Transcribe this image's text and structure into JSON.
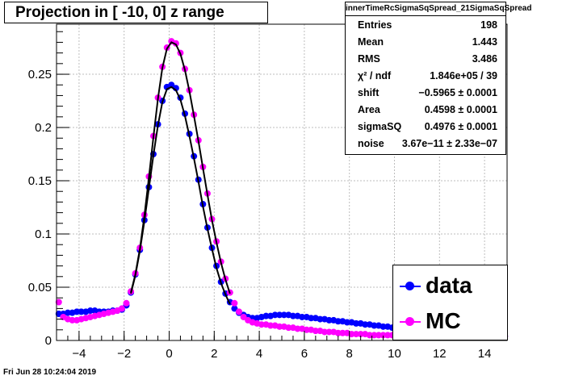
{
  "title": "Projection in [ -10,   0] z range",
  "timestamp": "Fri Jun 28 10:24:04 2019",
  "stats": {
    "name": "innerTimeRcSigmaSqSpread_21SigmaSqSpread",
    "rows": [
      {
        "label": "Entries",
        "value": "198"
      },
      {
        "label": "Mean",
        "value": "1.443"
      },
      {
        "label": "RMS",
        "value": "3.486"
      },
      {
        "label": "χ² / ndf",
        "value": "1.846e+05 / 39"
      },
      {
        "label": "shift",
        "value": "−0.5965 ± 0.0001"
      },
      {
        "label": "Area",
        "value": "0.4598 ± 0.0001"
      },
      {
        "label": "sigmaSQ",
        "value": "0.4976 ± 0.0001"
      },
      {
        "label": "noise",
        "value": "3.67e−11 ± 2.33e−07"
      }
    ]
  },
  "legend": [
    {
      "label": "data",
      "color": "#0000ff"
    },
    {
      "label": "MC",
      "color": "#ff00ff"
    }
  ],
  "chart_data": {
    "type": "scatter",
    "title": "Projection in [ -10,   0] z range",
    "xlim": [
      -5,
      15
    ],
    "ylim": [
      0,
      0.297
    ],
    "xticks": [
      -4,
      -2,
      0,
      2,
      4,
      6,
      8,
      10,
      12,
      14
    ],
    "xtick_labels": [
      "−4",
      "−2",
      "0",
      "2",
      "4",
      "6",
      "8",
      "10",
      "12",
      "14"
    ],
    "yticks": [
      0.05,
      0.1,
      0.15,
      0.2,
      0.25
    ],
    "ytick_labels": [
      "0.05",
      "0.1",
      "0.15",
      "0.2",
      "0.25"
    ],
    "y_origin_label": "0",
    "grid": true,
    "series": [
      {
        "name": "data",
        "color": "#0000ff",
        "x": [
          -4.9,
          -4.7,
          -4.5,
          -4.3,
          -4.1,
          -3.9,
          -3.7,
          -3.5,
          -3.3,
          -3.1,
          -2.9,
          -2.7,
          -2.5,
          -2.3,
          -2.1,
          -1.9,
          -1.7,
          -1.5,
          -1.3,
          -1.1,
          -0.9,
          -0.7,
          -0.5,
          -0.3,
          -0.1,
          0.1,
          0.3,
          0.5,
          0.7,
          0.9,
          1.1,
          1.3,
          1.5,
          1.7,
          1.9,
          2.1,
          2.3,
          2.5,
          2.7,
          2.9,
          3.1,
          3.3,
          3.5,
          3.7,
          3.9,
          4.1,
          4.3,
          4.5,
          4.7,
          4.9,
          5.1,
          5.3,
          5.5,
          5.7,
          5.9,
          6.1,
          6.3,
          6.5,
          6.7,
          6.9,
          7.1,
          7.3,
          7.5,
          7.7,
          7.9,
          8.1,
          8.3,
          8.5,
          8.7,
          8.9,
          9.1,
          9.3,
          9.5,
          9.7,
          9.9,
          10.1,
          10.3,
          10.5,
          10.7,
          10.9,
          11.1,
          11.3,
          11.5,
          11.7,
          11.9,
          12.1,
          12.3,
          12.5,
          12.7,
          12.9,
          13.1,
          13.3,
          13.5,
          13.7,
          13.9,
          14.1,
          14.3,
          14.5,
          14.7,
          14.9
        ],
        "y": [
          0.025,
          0.025,
          0.026,
          0.026,
          0.027,
          0.027,
          0.027,
          0.028,
          0.028,
          0.027,
          0.027,
          0.027,
          0.028,
          0.028,
          0.029,
          0.033,
          0.045,
          0.062,
          0.085,
          0.113,
          0.144,
          0.175,
          0.203,
          0.225,
          0.238,
          0.24,
          0.237,
          0.228,
          0.213,
          0.194,
          0.173,
          0.151,
          0.128,
          0.106,
          0.087,
          0.07,
          0.055,
          0.044,
          0.036,
          0.03,
          0.026,
          0.024,
          0.022,
          0.021,
          0.021,
          0.022,
          0.023,
          0.023,
          0.024,
          0.024,
          0.024,
          0.024,
          0.023,
          0.023,
          0.022,
          0.022,
          0.021,
          0.021,
          0.02,
          0.02,
          0.019,
          0.019,
          0.018,
          0.018,
          0.017,
          0.017,
          0.016,
          0.016,
          0.015,
          0.015,
          0.014,
          0.014,
          0.013,
          0.013,
          0.012,
          0.012,
          0.011,
          0.011,
          0.01,
          0.01,
          0.009,
          0.009,
          0.009,
          0.008,
          0.008,
          0.008,
          0.007,
          0.007,
          0.007,
          0.006,
          0.006,
          0.006,
          0.005,
          0.005,
          0.005,
          0.005,
          0.004,
          0.004,
          0.004,
          0.004
        ]
      },
      {
        "name": "MC",
        "color": "#ff00ff",
        "x": [
          -4.9,
          -4.7,
          -4.5,
          -4.3,
          -4.1,
          -3.9,
          -3.7,
          -3.5,
          -3.3,
          -3.1,
          -2.9,
          -2.7,
          -2.5,
          -2.3,
          -2.1,
          -1.9,
          -1.7,
          -1.5,
          -1.3,
          -1.1,
          -0.9,
          -0.7,
          -0.5,
          -0.3,
          -0.1,
          0.1,
          0.3,
          0.5,
          0.7,
          0.9,
          1.1,
          1.3,
          1.5,
          1.7,
          1.9,
          2.1,
          2.3,
          2.5,
          2.7,
          2.9,
          3.1,
          3.3,
          3.5,
          3.7,
          3.9,
          4.1,
          4.3,
          4.5,
          4.7,
          4.9,
          5.1,
          5.3,
          5.5,
          5.7,
          5.9,
          6.1,
          6.3,
          6.5,
          6.7,
          6.9,
          7.1,
          7.3,
          7.5,
          7.7,
          7.9,
          8.1,
          8.3,
          8.5,
          8.7,
          8.9,
          9.1,
          9.3,
          9.5,
          9.7,
          9.9,
          10.1,
          10.3,
          10.5,
          10.7,
          10.9,
          11.1,
          11.3,
          11.5,
          11.7,
          11.9,
          12.1,
          12.3,
          12.5,
          12.7,
          12.9,
          13.1,
          13.3,
          13.5,
          13.7,
          13.9,
          14.1,
          14.3,
          14.5,
          14.7,
          14.9
        ],
        "y": [
          0.036,
          0.022,
          0.02,
          0.019,
          0.019,
          0.02,
          0.021,
          0.022,
          0.023,
          0.024,
          0.025,
          0.026,
          0.027,
          0.028,
          0.03,
          0.035,
          0.046,
          0.063,
          0.087,
          0.118,
          0.154,
          0.192,
          0.228,
          0.257,
          0.275,
          0.281,
          0.279,
          0.27,
          0.255,
          0.235,
          0.212,
          0.188,
          0.163,
          0.138,
          0.114,
          0.093,
          0.074,
          0.058,
          0.045,
          0.035,
          0.027,
          0.022,
          0.019,
          0.017,
          0.016,
          0.015,
          0.015,
          0.014,
          0.014,
          0.013,
          0.013,
          0.012,
          0.012,
          0.011,
          0.011,
          0.01,
          0.01,
          0.009,
          0.009,
          0.008,
          0.008,
          0.008,
          0.007,
          0.007,
          0.007,
          0.006,
          0.006,
          0.006,
          0.006,
          0.005,
          0.005,
          0.005,
          0.005,
          0.005,
          0.005,
          0.005,
          0.004,
          0.004,
          0.004,
          0.004,
          0.004,
          0.004,
          0.004,
          0.004,
          0.004,
          0.004,
          0.004,
          0.004,
          0.004,
          0.004,
          0.004,
          0.004,
          0.004,
          0.004,
          0.004,
          0.004,
          0.004,
          0.004,
          0.004,
          0.004
        ]
      }
    ],
    "fits": [
      {
        "color": "#000000",
        "x": [
          -1.7,
          -1.5,
          -1.3,
          -1.1,
          -0.9,
          -0.7,
          -0.5,
          -0.3,
          -0.1,
          0.1,
          0.3,
          0.5,
          0.7,
          0.9,
          1.1,
          1.3,
          1.5,
          1.7,
          1.9,
          2.1,
          2.3,
          2.5,
          2.7
        ],
        "y": [
          0.044,
          0.061,
          0.084,
          0.112,
          0.143,
          0.174,
          0.202,
          0.224,
          0.236,
          0.238,
          0.235,
          0.226,
          0.211,
          0.192,
          0.171,
          0.149,
          0.126,
          0.105,
          0.086,
          0.068,
          0.054,
          0.043,
          0.034
        ]
      },
      {
        "color": "#000000",
        "x": [
          -1.7,
          -1.5,
          -1.3,
          -1.1,
          -0.9,
          -0.7,
          -0.5,
          -0.3,
          -0.1,
          0.1,
          0.3,
          0.5,
          0.7,
          0.9,
          1.1,
          1.3,
          1.5,
          1.7,
          1.9,
          2.1,
          2.3,
          2.5,
          2.7
        ],
        "y": [
          0.045,
          0.062,
          0.086,
          0.117,
          0.153,
          0.191,
          0.227,
          0.256,
          0.274,
          0.28,
          0.278,
          0.269,
          0.254,
          0.234,
          0.211,
          0.187,
          0.162,
          0.137,
          0.113,
          0.092,
          0.073,
          0.057,
          0.044
        ]
      }
    ]
  }
}
